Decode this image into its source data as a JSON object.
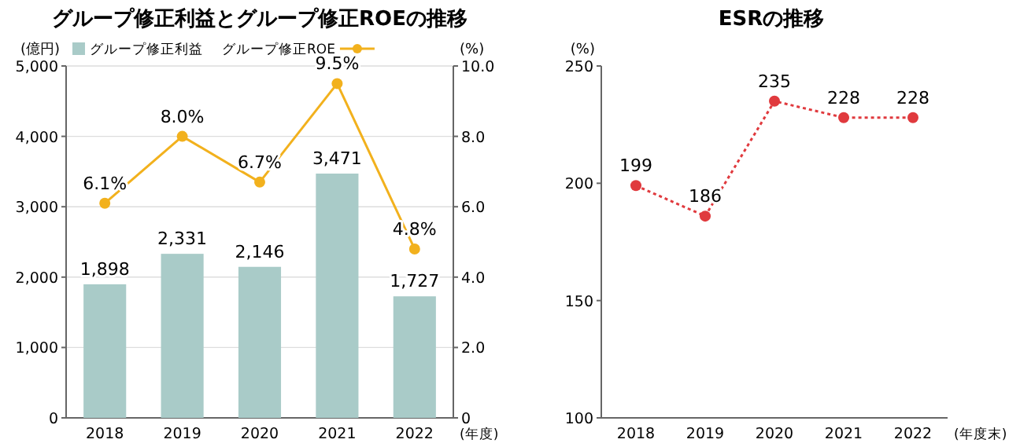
{
  "chart_data": [
    {
      "type": "bar",
      "title": "グループ修正利益とグループ修正ROEの推移",
      "ylabel": "(億円)",
      "y2label": "(%)",
      "xlabel": "(年度)",
      "categories": [
        "2018",
        "2019",
        "2020",
        "2021",
        "2022"
      ],
      "series": [
        {
          "name": "グループ修正利益",
          "color": "#a9cbc8",
          "values": [
            1898,
            2331,
            2146,
            3471,
            1727
          ],
          "value_labels": [
            "1,898",
            "2,331",
            "2,146",
            "3,471",
            "1,727"
          ]
        },
        {
          "name": "グループ修正ROE",
          "type": "line",
          "axis": "y2",
          "color": "#f2b11d",
          "marker": "circle",
          "values": [
            6.1,
            8.0,
            6.7,
            9.5,
            4.8
          ],
          "value_labels": [
            "6.1%",
            "8.0%",
            "6.7%",
            "9.5%",
            "4.8%"
          ]
        }
      ],
      "ylim": [
        0,
        5000
      ],
      "yticks": [
        0,
        {
          "value": 1000,
          "label": "1,000"
        },
        {
          "value": 2000,
          "label": "2,000"
        },
        {
          "value": 3000,
          "label": "3,000"
        },
        {
          "value": 4000,
          "label": "4,000"
        },
        {
          "value": 5000,
          "label": "5,000"
        }
      ],
      "y2lim": [
        0,
        10
      ],
      "y2ticks": [
        0,
        {
          "value": 2,
          "label": "2.0"
        },
        {
          "value": 4,
          "label": "4.0"
        },
        {
          "value": 6,
          "label": "6.0"
        },
        {
          "value": 8,
          "label": "8.0"
        },
        {
          "value": 10,
          "label": "10.0"
        }
      ],
      "grid": "y",
      "legend": "top left"
    },
    {
      "type": "line",
      "title": "ESRの推移",
      "ylabel": "(%)",
      "xlabel": "(年度末)",
      "categories": [
        "2018",
        "2019",
        "2020",
        "2021",
        "2022"
      ],
      "series": [
        {
          "color": "#e03a3e",
          "values": [
            199,
            186,
            235,
            228,
            228
          ]
        }
      ],
      "ylim": [
        100,
        250
      ],
      "yticks": [
        100,
        150,
        200,
        250
      ],
      "marker": "circle",
      "line_style": "dotted",
      "data_labels": true
    }
  ]
}
